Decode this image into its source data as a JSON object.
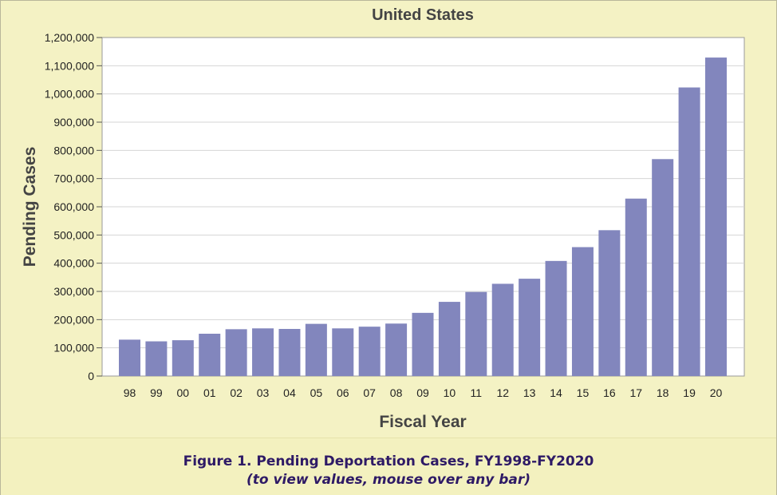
{
  "chart_data": {
    "type": "bar",
    "title": "United States",
    "xlabel": "Fiscal Year",
    "ylabel": "Pending Cases",
    "ylim": [
      0,
      1200000
    ],
    "y_ticks": [
      "0",
      "100,000",
      "200,000",
      "300,000",
      "400,000",
      "500,000",
      "600,000",
      "700,000",
      "800,000",
      "900,000",
      "1,000,000",
      "1,100,000",
      "1,200,000"
    ],
    "grid": "horizontal",
    "bar_color": "#8286bd",
    "categories": [
      "98",
      "99",
      "00",
      "01",
      "02",
      "03",
      "04",
      "05",
      "06",
      "07",
      "08",
      "09",
      "10",
      "11",
      "12",
      "13",
      "14",
      "15",
      "16",
      "17",
      "18",
      "19",
      "20"
    ],
    "values": [
      129000,
      123000,
      127000,
      150000,
      166000,
      169000,
      167000,
      185000,
      169000,
      175000,
      186000,
      224000,
      263000,
      298000,
      327000,
      345000,
      408000,
      457000,
      517000,
      629000,
      769000,
      1023000,
      1129000
    ]
  },
  "caption": {
    "title": "Figure 1. Pending Deportation Cases, FY1998-FY2020",
    "subtitle": "(to view values, mouse over any bar)"
  },
  "colors": {
    "background": "#f4f2c4",
    "plot_area": "#ffffff",
    "caption_text": "#2e1a66"
  }
}
